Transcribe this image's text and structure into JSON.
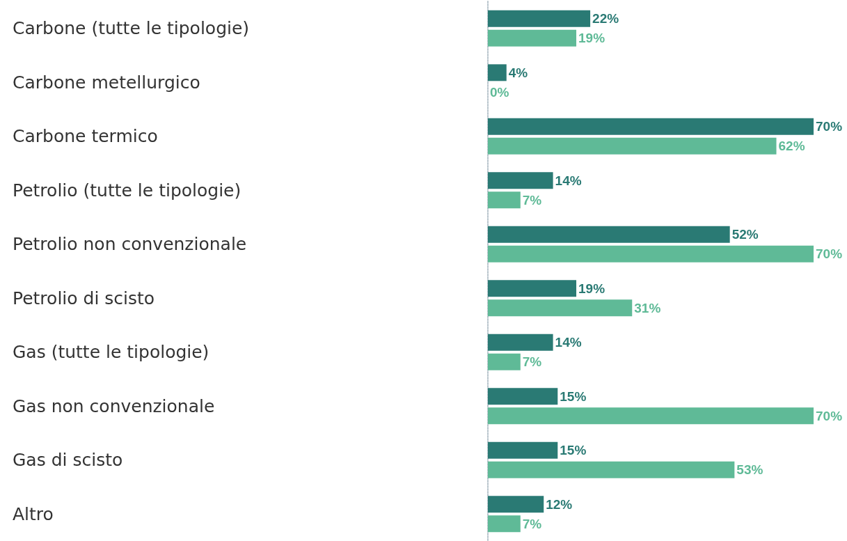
{
  "chart_data": {
    "type": "bar",
    "orientation": "horizontal",
    "categories": [
      "Carbone (tutte le tipologie)",
      "Carbone metellurgico",
      "Carbone termico",
      "Petrolio (tutte le tipologie)",
      "Petrolio non convenzionale",
      "Petrolio di scisto",
      "Gas (tutte le tipologie)",
      "Gas non convenzionale",
      "Gas di scisto",
      "Altro"
    ],
    "series": [
      {
        "color": "#2a7a74",
        "values": [
          22,
          4,
          70,
          14,
          52,
          19,
          14,
          15,
          15,
          12
        ],
        "value_labels": [
          "22%",
          "4%",
          "70%",
          "14%",
          "52%",
          "19%",
          "14%",
          "15%",
          "15%",
          "12%"
        ]
      },
      {
        "color": "#5fba97",
        "values": [
          19,
          0,
          62,
          7,
          70,
          31,
          7,
          70,
          53,
          7
        ],
        "value_labels": [
          "19%",
          "0%",
          "62%",
          "7%",
          "70%",
          "31%",
          "7%",
          "70%",
          "53%",
          "7%"
        ]
      }
    ]
  }
}
